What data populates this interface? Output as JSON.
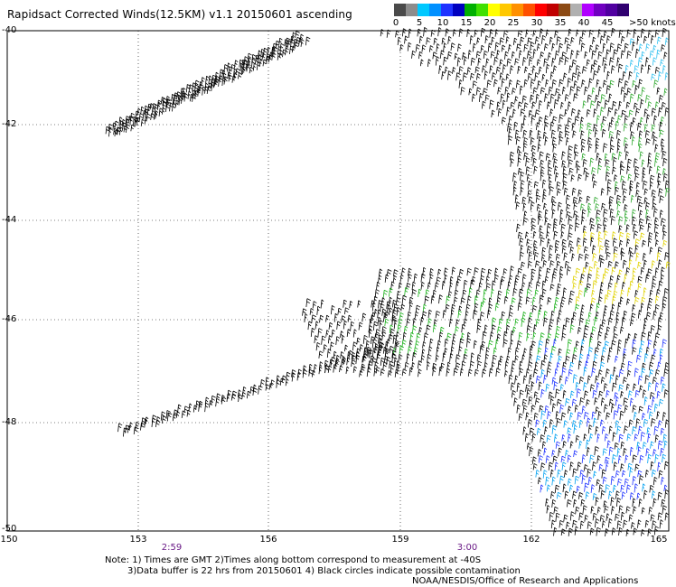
{
  "title": "Rapidsact Corrected Winds(12.5KM) v1.1 20150601 ascending",
  "legend": {
    "swatches": [
      {
        "color": "#4a4a4a"
      },
      {
        "color": "#8c8c8c"
      },
      {
        "color": "#00c8ff"
      },
      {
        "color": "#0090ff"
      },
      {
        "color": "#1e32ff"
      },
      {
        "color": "#0000c0"
      },
      {
        "color": "#00b000"
      },
      {
        "color": "#40e000"
      },
      {
        "color": "#ffff00"
      },
      {
        "color": "#ffc800"
      },
      {
        "color": "#ff9000"
      },
      {
        "color": "#ff5000"
      },
      {
        "color": "#ff0000"
      },
      {
        "color": "#c00000"
      },
      {
        "color": "#8c4a14"
      },
      {
        "color": "#b0b0b0"
      },
      {
        "color": "#b000ff"
      },
      {
        "color": "#7000c0"
      },
      {
        "color": "#5000a0"
      },
      {
        "color": "#300070"
      }
    ],
    "labels": [
      "0",
      "5",
      "10",
      "15",
      "20",
      "25",
      "30",
      "35",
      "40",
      "45"
    ],
    "unit": ">50 knots"
  },
  "axes": {
    "lat_labels": [
      "-40",
      "-42",
      "-44",
      "-46",
      "-48",
      "-50"
    ],
    "lon_labels": [
      "150",
      "153",
      "156",
      "159",
      "162",
      "165"
    ],
    "time_labels": [
      "2:59",
      "3:00"
    ]
  },
  "notes": {
    "line1": "Note: 1) Times are GMT 2)Times along bottom correspond to measurement at -40S",
    "line2": "3)Data buffer is 22 hrs from 20150601 4) Black circles indicate possible contamination",
    "line3": "NOAA/NESDIS/Office of Research and Applications"
  }
}
